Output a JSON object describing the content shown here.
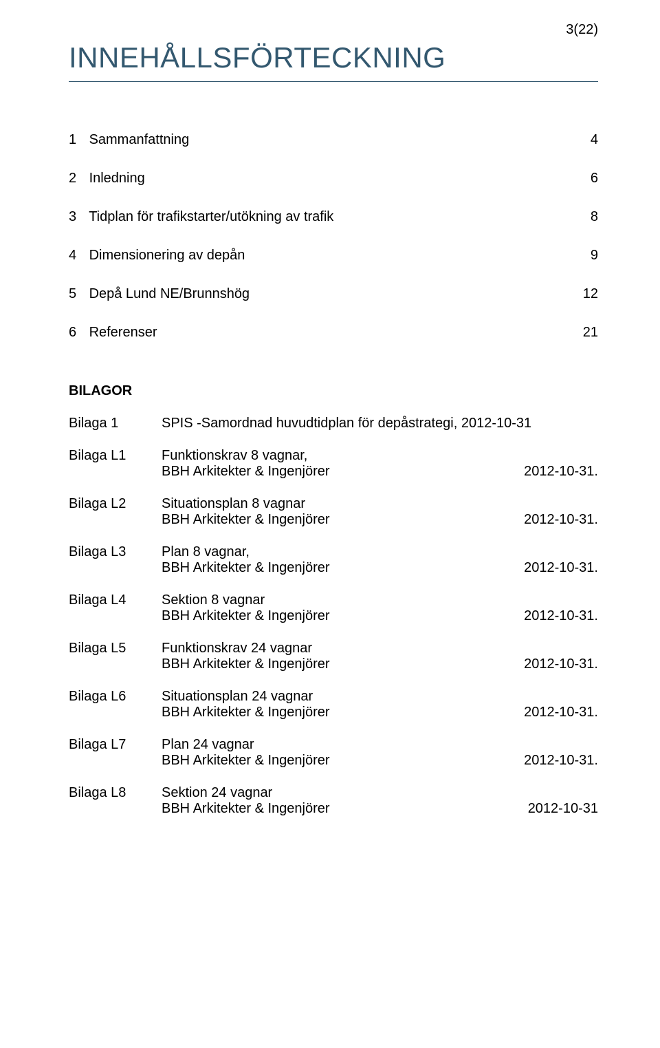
{
  "page_number": "3(22)",
  "heading": "INNEHÅLLSFÖRTECKNING",
  "colors": {
    "heading_color": "#33586f",
    "heading_rule_color": "#33586f",
    "text_color": "#000000",
    "background": "#ffffff"
  },
  "typography": {
    "heading_fontsize_pt": 31,
    "body_fontsize_pt": 15,
    "font_family": "Arial"
  },
  "toc": [
    {
      "num": "1",
      "title": "Sammanfattning",
      "page": "4"
    },
    {
      "num": "2",
      "title": "Inledning",
      "page": "6"
    },
    {
      "num": "3",
      "title": "Tidplan för trafikstarter/utökning av trafik",
      "page": "8"
    },
    {
      "num": "4",
      "title": "Dimensionering av depån",
      "page": "9"
    },
    {
      "num": "5",
      "title": "Depå Lund NE/Brunnshög",
      "page": "12"
    },
    {
      "num": "6",
      "title": "Referenser",
      "page": "21"
    }
  ],
  "bilagor_heading": "BILAGOR",
  "attachments": [
    {
      "label": "Bilaga 1",
      "line1": "SPIS -Samordnad huvudtidplan för depåstrategi, 2012-10-31",
      "line2_left": "",
      "line2_right": ""
    },
    {
      "label": "Bilaga L1",
      "line1": "Funktionskrav 8 vagnar,",
      "line2_left": "BBH Arkitekter & Ingenjörer",
      "line2_right": "2012-10-31."
    },
    {
      "label": "Bilaga L2",
      "line1": "Situationsplan 8 vagnar",
      "line2_left": "BBH Arkitekter & Ingenjörer",
      "line2_right": "2012-10-31."
    },
    {
      "label": "Bilaga L3",
      "line1": "Plan 8 vagnar,",
      "line2_left": "BBH Arkitekter & Ingenjörer",
      "line2_right": "2012-10-31."
    },
    {
      "label": "Bilaga L4",
      "line1": "Sektion 8 vagnar",
      "line2_left": "BBH Arkitekter & Ingenjörer",
      "line2_right": "2012-10-31."
    },
    {
      "label": "Bilaga L5",
      "line1": "Funktionskrav 24 vagnar",
      "line2_left": "BBH Arkitekter & Ingenjörer",
      "line2_right": "2012-10-31."
    },
    {
      "label": "Bilaga L6",
      "line1": "Situationsplan 24 vagnar",
      "line2_left": "BBH Arkitekter & Ingenjörer",
      "line2_right": "2012-10-31."
    },
    {
      "label": "Bilaga L7",
      "line1": "Plan 24 vagnar",
      "line2_left": "BBH Arkitekter & Ingenjörer",
      "line2_right": "2012-10-31."
    },
    {
      "label": "Bilaga L8",
      "line1": "Sektion 24 vagnar",
      "line2_left": "BBH Arkitekter & Ingenjörer",
      "line2_right": "2012-10-31"
    }
  ]
}
